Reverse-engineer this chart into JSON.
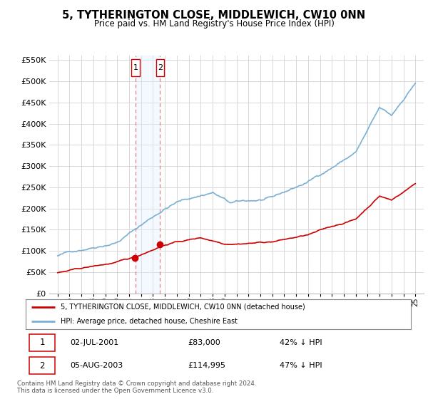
{
  "title": "5, TYTHERINGTON CLOSE, MIDDLEWICH, CW10 0NN",
  "subtitle": "Price paid vs. HM Land Registry's House Price Index (HPI)",
  "legend_line1": "5, TYTHERINGTON CLOSE, MIDDLEWICH, CW10 0NN (detached house)",
  "legend_line2": "HPI: Average price, detached house, Cheshire East",
  "transaction1_date": "02-JUL-2001",
  "transaction1_price": "£83,000",
  "transaction1_hpi": "42% ↓ HPI",
  "transaction2_date": "05-AUG-2003",
  "transaction2_price": "£114,995",
  "transaction2_hpi": "47% ↓ HPI",
  "footnote1": "Contains HM Land Registry data © Crown copyright and database right 2024.",
  "footnote2": "This data is licensed under the Open Government Licence v3.0.",
  "hpi_color": "#7ab0d4",
  "price_color": "#cc0000",
  "vline_color": "#e08080",
  "span_color": "#ddeeff",
  "ylim_max": 560000,
  "ylim_min": 0,
  "transaction1_x": 2001.54,
  "transaction2_x": 2003.6,
  "plot_bg": "#ffffff",
  "grid_color": "#d8d8d8",
  "transaction1_price_val": 83000,
  "transaction2_price_val": 114995,
  "xlim_min": 1994.3,
  "xlim_max": 2025.7
}
